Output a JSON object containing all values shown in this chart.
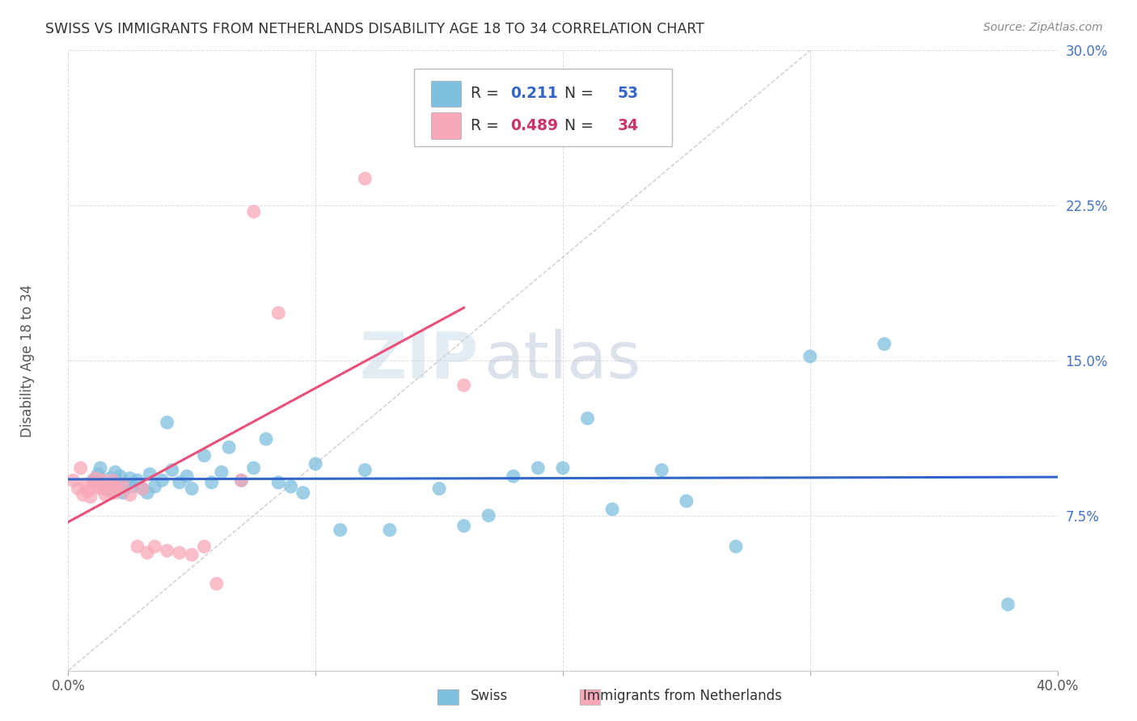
{
  "title": "SWISS VS IMMIGRANTS FROM NETHERLANDS DISABILITY AGE 18 TO 34 CORRELATION CHART",
  "source": "Source: ZipAtlas.com",
  "ylabel": "Disability Age 18 to 34",
  "xlim": [
    0.0,
    0.4
  ],
  "ylim": [
    0.0,
    0.3
  ],
  "xticks": [
    0.0,
    0.1,
    0.2,
    0.3,
    0.4
  ],
  "xticklabels": [
    "0.0%",
    "",
    "",
    "",
    "40.0%"
  ],
  "yticks": [
    0.0,
    0.075,
    0.15,
    0.225,
    0.3
  ],
  "yticklabels": [
    "",
    "7.5%",
    "15.0%",
    "22.5%",
    "30.0%"
  ],
  "swiss_color": "#7fbfdf",
  "netherlands_color": "#f8a8b8",
  "swiss_line_color": "#3366cc",
  "netherlands_line_color": "#e8507a",
  "diagonal_color": "#cccccc",
  "swiss_R": 0.211,
  "swiss_N": 53,
  "netherlands_R": 0.489,
  "netherlands_N": 34,
  "watermark_left": "ZIP",
  "watermark_right": "atlas",
  "swiss_x": [
    0.01,
    0.012,
    0.013,
    0.015,
    0.016,
    0.017,
    0.018,
    0.019,
    0.02,
    0.021,
    0.022,
    0.023,
    0.025,
    0.026,
    0.028,
    0.03,
    0.032,
    0.033,
    0.035,
    0.038,
    0.04,
    0.042,
    0.045,
    0.048,
    0.05,
    0.055,
    0.058,
    0.062,
    0.065,
    0.07,
    0.075,
    0.08,
    0.085,
    0.09,
    0.095,
    0.1,
    0.11,
    0.12,
    0.13,
    0.15,
    0.16,
    0.17,
    0.18,
    0.19,
    0.2,
    0.21,
    0.22,
    0.24,
    0.25,
    0.27,
    0.3,
    0.33,
    0.38
  ],
  "swiss_y": [
    0.092,
    0.095,
    0.098,
    0.09,
    0.088,
    0.093,
    0.087,
    0.096,
    0.091,
    0.094,
    0.086,
    0.09,
    0.093,
    0.089,
    0.092,
    0.088,
    0.086,
    0.095,
    0.089,
    0.092,
    0.12,
    0.097,
    0.091,
    0.094,
    0.088,
    0.104,
    0.091,
    0.096,
    0.108,
    0.092,
    0.098,
    0.112,
    0.091,
    0.089,
    0.086,
    0.1,
    0.068,
    0.097,
    0.068,
    0.088,
    0.07,
    0.075,
    0.094,
    0.098,
    0.098,
    0.122,
    0.078,
    0.097,
    0.082,
    0.06,
    0.152,
    0.158,
    0.032
  ],
  "netherlands_x": [
    0.002,
    0.004,
    0.005,
    0.006,
    0.007,
    0.008,
    0.009,
    0.01,
    0.011,
    0.012,
    0.013,
    0.014,
    0.015,
    0.016,
    0.017,
    0.018,
    0.019,
    0.02,
    0.022,
    0.025,
    0.028,
    0.03,
    0.032,
    0.035,
    0.04,
    0.045,
    0.05,
    0.055,
    0.06,
    0.07,
    0.075,
    0.085,
    0.12,
    0.16
  ],
  "netherlands_y": [
    0.092,
    0.088,
    0.098,
    0.085,
    0.09,
    0.087,
    0.084,
    0.091,
    0.093,
    0.089,
    0.088,
    0.092,
    0.085,
    0.087,
    0.09,
    0.092,
    0.086,
    0.088,
    0.09,
    0.085,
    0.06,
    0.088,
    0.057,
    0.06,
    0.058,
    0.057,
    0.056,
    0.06,
    0.042,
    0.092,
    0.222,
    0.173,
    0.238,
    0.138
  ],
  "legend_R_color_swiss": "#3366cc",
  "legend_N_color_swiss": "#3366cc",
  "legend_R_color_nl": "#cc3366",
  "legend_N_color_nl": "#cc3366"
}
